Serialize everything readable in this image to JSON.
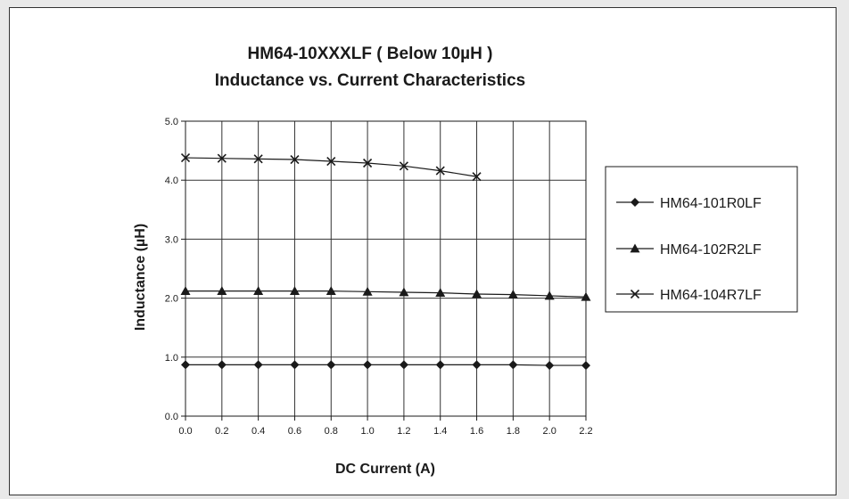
{
  "chart_data": {
    "type": "line",
    "title": "HM64-10XXXLF ( Below 10µH )",
    "subtitle": "Inductance vs. Current Characteristics",
    "xlabel": "DC Current (A)",
    "ylabel": "Inductance (µH)",
    "xlim": [
      0.0,
      2.2
    ],
    "ylim": [
      0.0,
      5.0
    ],
    "x_ticks": [
      "0.0",
      "0.2",
      "0.4",
      "0.6",
      "0.8",
      "1.0",
      "1.2",
      "1.4",
      "1.6",
      "1.8",
      "2.0",
      "2.2"
    ],
    "y_ticks": [
      "0.0",
      "1.0",
      "2.0",
      "3.0",
      "4.0",
      "5.0"
    ],
    "grid": true,
    "legend_position": "right",
    "series": [
      {
        "name": "HM64-101R0LF",
        "marker": "diamond",
        "x": [
          0.0,
          0.2,
          0.4,
          0.6,
          0.8,
          1.0,
          1.2,
          1.4,
          1.6,
          1.8,
          2.0,
          2.2
        ],
        "y": [
          0.87,
          0.87,
          0.87,
          0.87,
          0.87,
          0.87,
          0.87,
          0.87,
          0.87,
          0.87,
          0.86,
          0.86
        ]
      },
      {
        "name": "HM64-102R2LF",
        "marker": "triangle",
        "x": [
          0.0,
          0.2,
          0.4,
          0.6,
          0.8,
          1.0,
          1.2,
          1.4,
          1.6,
          1.8,
          2.0,
          2.2
        ],
        "y": [
          2.12,
          2.12,
          2.12,
          2.12,
          2.12,
          2.11,
          2.1,
          2.09,
          2.07,
          2.06,
          2.04,
          2.02
        ]
      },
      {
        "name": "HM64-104R7LF",
        "marker": "cross",
        "x": [
          0.0,
          0.2,
          0.4,
          0.6,
          0.8,
          1.0,
          1.2,
          1.4,
          1.6
        ],
        "y": [
          4.38,
          4.37,
          4.36,
          4.35,
          4.32,
          4.29,
          4.24,
          4.16,
          4.06
        ]
      }
    ]
  },
  "colors": {
    "line": "#1a1a1a",
    "grid": "#333333",
    "background": "#ffffff",
    "page": "#e9e9e9"
  }
}
